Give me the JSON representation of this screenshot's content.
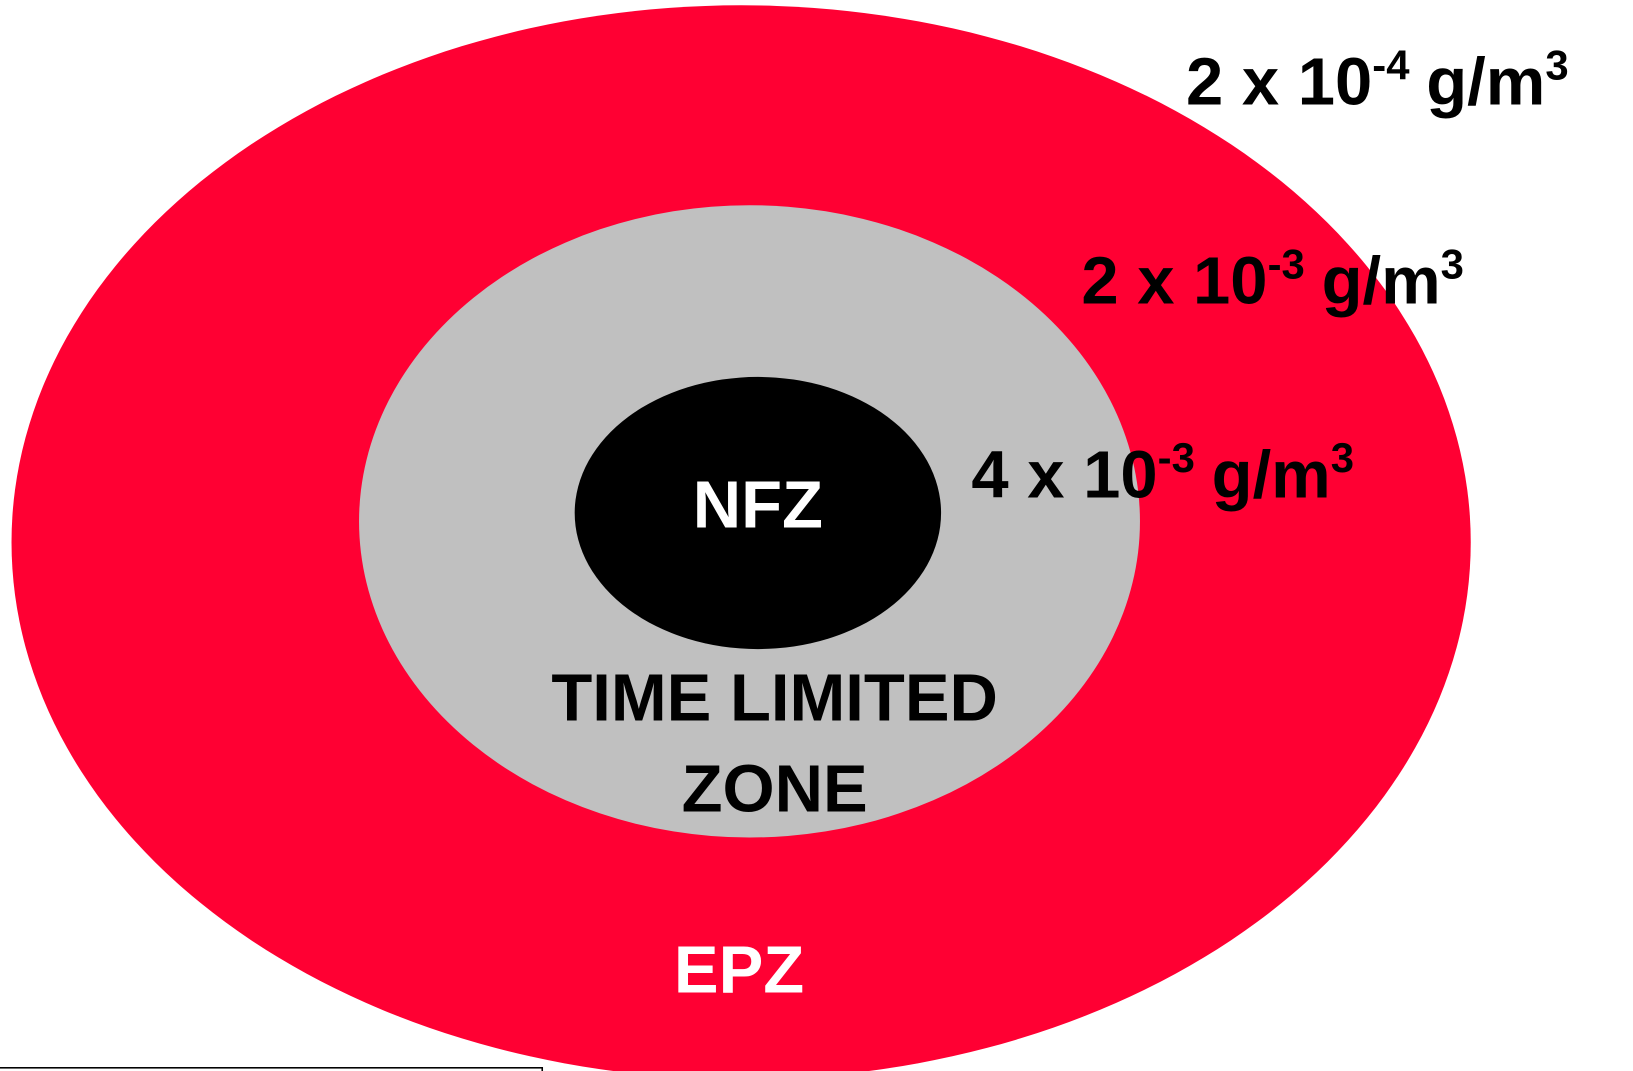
{
  "zones": [
    {
      "label": [
        "EPZ"
      ]
    },
    {
      "label": [
        "TIME LIMITED",
        "ZONE"
      ]
    },
    {
      "label": [
        "NFZ"
      ]
    }
  ],
  "thresholds": [
    {
      "base": "2 x 10",
      "exponent": "-4",
      "unit": "g/m",
      "unit_exponent": "3"
    },
    {
      "base": "2 x 10",
      "exponent": "-3",
      "unit": "g/m",
      "unit_exponent": "3"
    },
    {
      "base": "4 x 10",
      "exponent": "-3",
      "unit": "g/m",
      "unit_exponent": "3"
    }
  ]
}
